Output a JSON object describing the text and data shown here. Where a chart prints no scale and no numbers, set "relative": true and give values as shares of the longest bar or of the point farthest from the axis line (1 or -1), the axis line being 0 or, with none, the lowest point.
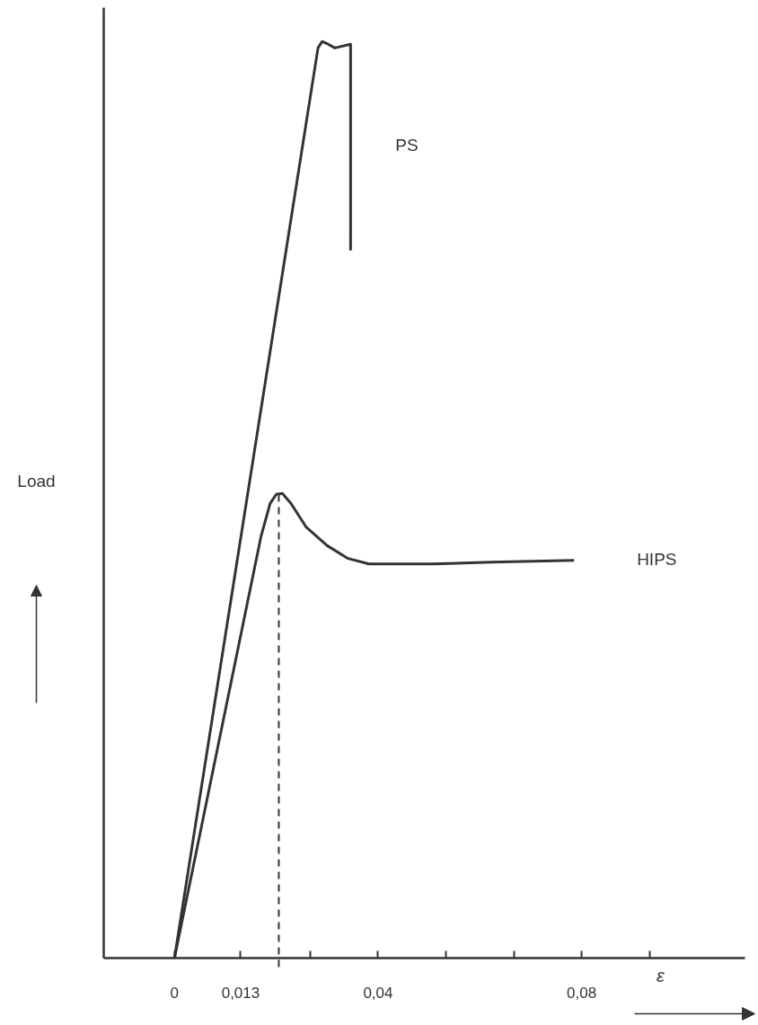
{
  "chart_data": {
    "type": "line",
    "xlabel": "ε",
    "ylabel": "Load",
    "relative": true,
    "xlim": [
      -0.0139,
      0.112
    ],
    "xticks": [
      0,
      {
        "value": 0.013,
        "label": "0,013"
      },
      {
        "value": 0.0267,
        "label": null
      },
      {
        "value": 0.04,
        "label": "0,04"
      },
      {
        "value": 0.0533,
        "label": null
      },
      {
        "value": 0.0667,
        "label": null
      },
      {
        "value": 0.08,
        "label": "0,08"
      },
      {
        "value": 0.0933,
        "label": null
      }
    ],
    "grid": false,
    "legend": false,
    "marker": "none",
    "line_style": "solid",
    "ref_lines": [
      {
        "axis": "x",
        "value": 0.0205,
        "label": null,
        "line_style": "dashed",
        "color": "#333333"
      }
    ],
    "series": [
      {
        "name": "PS",
        "color": "#333333",
        "x": [
          0,
          0.0282,
          0.029,
          0.0299,
          0.0315,
          0.0346,
          0.0346
        ],
        "values": [
          0,
          0.993,
          1.0,
          0.998,
          0.993,
          0.997,
          0.772
        ]
      },
      {
        "name": "HIPS",
        "color": "#333333",
        "x": [
          0,
          0.017,
          0.0188,
          0.02,
          0.0212,
          0.0229,
          0.0259,
          0.03,
          0.0341,
          0.0382,
          0.0506,
          0.0624,
          0.0785
        ],
        "values": [
          0,
          0.46,
          0.496,
          0.506,
          0.507,
          0.496,
          0.47,
          0.45,
          0.436,
          0.43,
          0.43,
          0.432,
          0.434
        ]
      }
    ]
  }
}
